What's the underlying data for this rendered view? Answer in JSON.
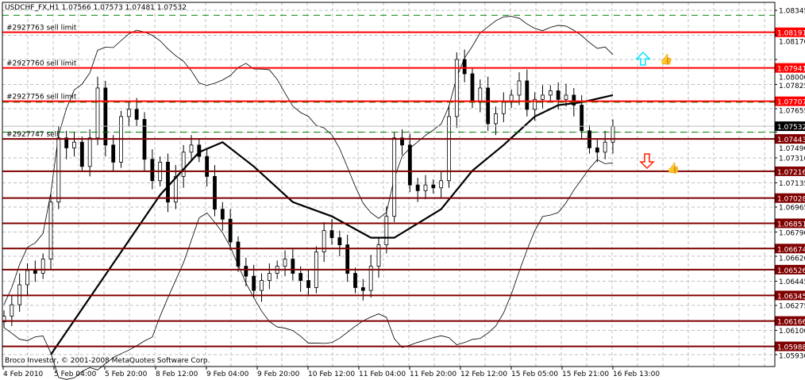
{
  "header": {
    "title": "USDCHF_FX,H1  1.07566 1.07573 1.07481 1.07532"
  },
  "footer": {
    "copyright": "Broco Investor, © 2001-2008 MetaQuotes Software Corp."
  },
  "colors": {
    "background": "#ffffff",
    "grid": "#c0c0c0",
    "sell_limit": "#ff0000",
    "level": "#800000",
    "stop_dashed": "#008000",
    "candle": "#000000",
    "current_price_bg": "#000000",
    "up_arrow": "#00e5ff",
    "down_arrow": "#ff2000",
    "thumb": "#00d8e8"
  },
  "chart_data": {
    "type": "candlestick",
    "symbol": "USDCHF_FX",
    "timeframe": "H1",
    "ohlc_last": {
      "open": 1.07566,
      "high": 1.07573,
      "low": 1.07481,
      "close": 1.07532
    },
    "ylim": [
      1.059,
      1.0838
    ],
    "y_ticks": [
      "1.08345",
      "1.08170",
      "1.08000",
      "1.07825",
      "1.07655",
      "1.07490",
      "1.07310",
      "1.07135",
      "1.06965",
      "1.06790",
      "1.06620",
      "1.06445",
      "1.06275",
      "1.06100",
      "1.05930"
    ],
    "x_ticks": [
      "4 Feb 2010",
      "5 Feb 04:00",
      "5 Feb 20:00",
      "8 Feb 12:00",
      "9 Feb 04:00",
      "9 Feb 20:00",
      "10 Feb 12:00",
      "11 Feb 04:00",
      "11 Feb 20:00",
      "12 Feb 12:00",
      "15 Feb 05:00",
      "15 Feb 21:00",
      "16 Feb 13:00"
    ],
    "closes": [
      1.062,
      1.0628,
      1.0642,
      1.0652,
      1.065,
      1.066,
      1.07,
      1.0745,
      1.0738,
      1.0742,
      1.0725,
      1.0745,
      1.078,
      1.074,
      1.0728,
      1.076,
      1.0765,
      1.0758,
      1.073,
      1.0715,
      1.0728,
      1.07,
      1.0718,
      1.0735,
      1.074,
      1.0732,
      1.0718,
      1.0695,
      1.0688,
      1.0672,
      1.0655,
      1.0648,
      1.0638,
      1.0645,
      1.065,
      1.0655,
      1.066,
      1.065,
      1.0645,
      1.064,
      1.0665,
      1.068,
      1.0675,
      1.067,
      1.065,
      1.064,
      1.0638,
      1.0655,
      1.067,
      1.069,
      1.0745,
      1.074,
      1.0712,
      1.0708,
      1.0712,
      1.071,
      1.0715,
      1.076,
      1.08,
      1.079,
      1.077,
      1.078,
      1.0755,
      1.0762,
      1.077,
      1.0775,
      1.0785,
      1.0765,
      1.0772,
      1.0775,
      1.0778,
      1.0772,
      1.0775,
      1.0768,
      1.075,
      1.0738,
      1.0735,
      1.0742,
      1.0753
    ],
    "moving_average": [
      [
        6,
        1.0593
      ],
      [
        10,
        1.0625
      ],
      [
        15,
        1.0665
      ],
      [
        20,
        1.0705
      ],
      [
        25,
        1.0735
      ],
      [
        28,
        1.0742
      ],
      [
        32,
        1.0725
      ],
      [
        37,
        1.07
      ],
      [
        42,
        1.069
      ],
      [
        47,
        1.0675
      ],
      [
        50,
        1.0675
      ],
      [
        53,
        1.0685
      ],
      [
        56,
        1.0695
      ],
      [
        60,
        1.0722
      ],
      [
        64,
        1.074
      ],
      [
        68,
        1.076
      ],
      [
        71,
        1.0768
      ],
      [
        74,
        1.077
      ],
      [
        78,
        1.0775
      ]
    ],
    "current_price": "1.07532",
    "levels": [
      {
        "price": "1.08191",
        "kind": "sell_limit",
        "label": "#2927763 sell limit"
      },
      {
        "price": "1.07941",
        "kind": "sell_limit",
        "label": "#2927760 sell limit"
      },
      {
        "price": "1.07707",
        "kind": "sell_limit",
        "label": "#2927756 sell limit"
      },
      {
        "price": "1.07443",
        "kind": "level",
        "label": "#2927747 sell"
      },
      {
        "price": "1.07216",
        "kind": "level",
        "label": ""
      },
      {
        "price": "1.07028",
        "kind": "level",
        "label": ""
      },
      {
        "price": "1.06851",
        "kind": "level",
        "label": ""
      },
      {
        "price": "1.06674",
        "kind": "level",
        "label": ""
      },
      {
        "price": "1.06526",
        "kind": "level",
        "label": ""
      },
      {
        "price": "1.06345",
        "kind": "level",
        "label": ""
      },
      {
        "price": "1.06166",
        "kind": "level",
        "label": ""
      },
      {
        "price": "1.05988",
        "kind": "level",
        "label": ""
      }
    ],
    "dashed_levels": [
      "1.08310",
      "1.07700",
      "1.07490"
    ]
  }
}
